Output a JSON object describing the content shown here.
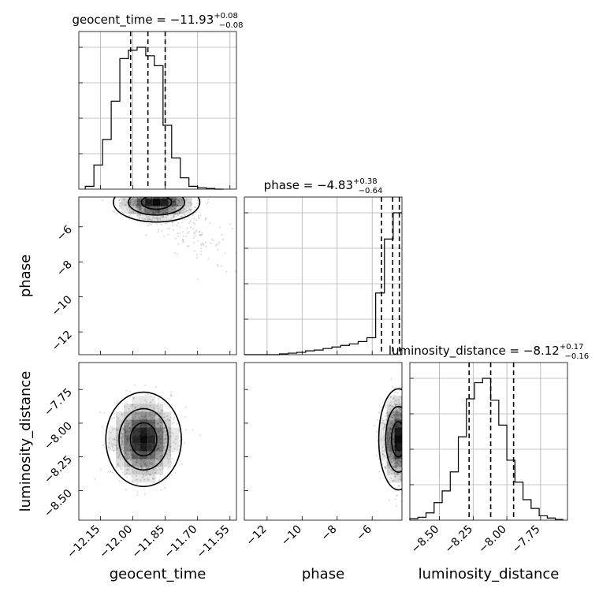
{
  "chart_data": {
    "type": "corner",
    "parameters": [
      "geocent_time",
      "phase",
      "luminosity_distance"
    ],
    "axis_labels": {
      "x": [
        "geocent_time",
        "phase",
        "luminosity_distance"
      ],
      "y": [
        "phase",
        "luminosity_distance"
      ]
    },
    "titles": [
      {
        "prefix": "geocent_time = −11.93",
        "plus": "+0.08",
        "minus": "−0.08"
      },
      {
        "prefix": "phase = −4.83",
        "plus": "+0.38",
        "minus": "−0.64"
      },
      {
        "prefix": "luminosity_distance = −8.12",
        "plus": "+0.17",
        "minus": "−0.16"
      }
    ],
    "ranges": {
      "geocent_time": [
        -12.25,
        -11.52
      ],
      "phase": [
        -13.3,
        -4.3
      ],
      "luminosity_distance": [
        -8.72,
        -7.55
      ]
    },
    "ticks": {
      "geocent_time": [
        "−12.15",
        "−12.00",
        "−11.85",
        "−11.70",
        "−11.55"
      ],
      "phase": [
        "−12",
        "−10",
        "−8",
        "−6"
      ],
      "luminosity_distance": [
        "−8.50",
        "−8.25",
        "−8.00",
        "−7.75"
      ]
    },
    "quantiles": {
      "geocent_time": [
        -12.01,
        -11.93,
        -11.85
      ],
      "phase": [
        -5.47,
        -4.83,
        -4.45
      ],
      "luminosity_distance": [
        -8.28,
        -8.12,
        -7.95
      ]
    },
    "histograms": {
      "geocent_time": {
        "bins": [
          -12.22,
          -12.18,
          -12.14,
          -12.1,
          -12.06,
          -12.02,
          -11.98,
          -11.94,
          -11.9,
          -11.86,
          -11.82,
          -11.78,
          -11.74,
          -11.7,
          -11.66,
          -11.62,
          -11.58
        ],
        "counts": [
          0.02,
          0.17,
          0.35,
          0.62,
          0.92,
          0.98,
          1.0,
          0.94,
          0.87,
          0.45,
          0.22,
          0.08,
          0.02,
          0.01,
          0.005,
          0.0
        ]
      },
      "phase": {
        "bins": [
          -13.3,
          -12.8,
          -12.3,
          -11.8,
          -11.3,
          -10.8,
          -10.3,
          -9.8,
          -9.3,
          -8.8,
          -8.3,
          -7.8,
          -7.3,
          -6.8,
          -6.3,
          -5.8,
          -5.3,
          -4.8,
          -4.3
        ],
        "counts": [
          0.0,
          0.0,
          0.0,
          0.0,
          0.005,
          0.01,
          0.015,
          0.025,
          0.03,
          0.04,
          0.05,
          0.06,
          0.07,
          0.085,
          0.11,
          0.4,
          0.75,
          0.92
        ]
      },
      "luminosity_distance": {
        "bins": [
          -8.72,
          -8.66,
          -8.6,
          -8.54,
          -8.48,
          -8.42,
          -8.36,
          -8.3,
          -8.24,
          -8.18,
          -8.12,
          -8.06,
          -8.0,
          -7.94,
          -7.88,
          -7.82,
          -7.76,
          -7.7,
          -7.64,
          -7.58
        ],
        "counts": [
          0.01,
          0.02,
          0.05,
          0.12,
          0.2,
          0.33,
          0.57,
          0.83,
          0.94,
          0.97,
          0.82,
          0.65,
          0.41,
          0.26,
          0.14,
          0.08,
          0.03,
          0.015,
          0.005
        ]
      }
    },
    "pairs": [
      {
        "x": "geocent_time",
        "y": "phase",
        "peak": [
          -11.89,
          -4.6
        ],
        "spread": [
          0.08,
          0.45
        ],
        "tail": [
          0.14,
          -1.5
        ]
      },
      {
        "x": "geocent_time",
        "y": "luminosity_distance",
        "peak": [
          -11.95,
          -8.12
        ],
        "spread": [
          0.07,
          0.14
        ],
        "tail": [
          0.0,
          0.0
        ]
      },
      {
        "x": "phase",
        "y": "luminosity_distance",
        "peak": [
          -4.5,
          -8.12
        ],
        "spread": [
          0.45,
          0.15
        ],
        "tail": [
          0.0,
          0.0
        ]
      }
    ],
    "grid": true
  }
}
